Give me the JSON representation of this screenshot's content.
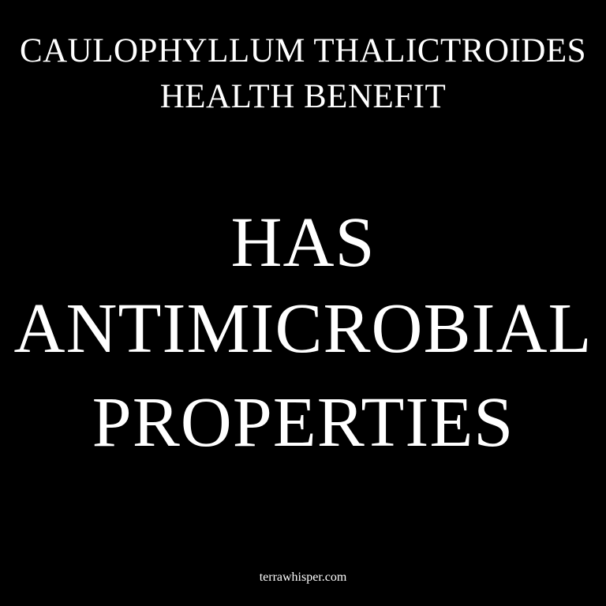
{
  "colors": {
    "background": "#000000",
    "text": "#ffffff"
  },
  "heading": {
    "line1": "CAULOPHYLLUM THALICTROIDES",
    "line2": "HEALTH BENEFIT"
  },
  "headline": {
    "line1": "HAS",
    "line2": "ANTIMICROBIAL",
    "line3": "PROPERTIES"
  },
  "footer": {
    "site": "terrawhisper.com"
  }
}
